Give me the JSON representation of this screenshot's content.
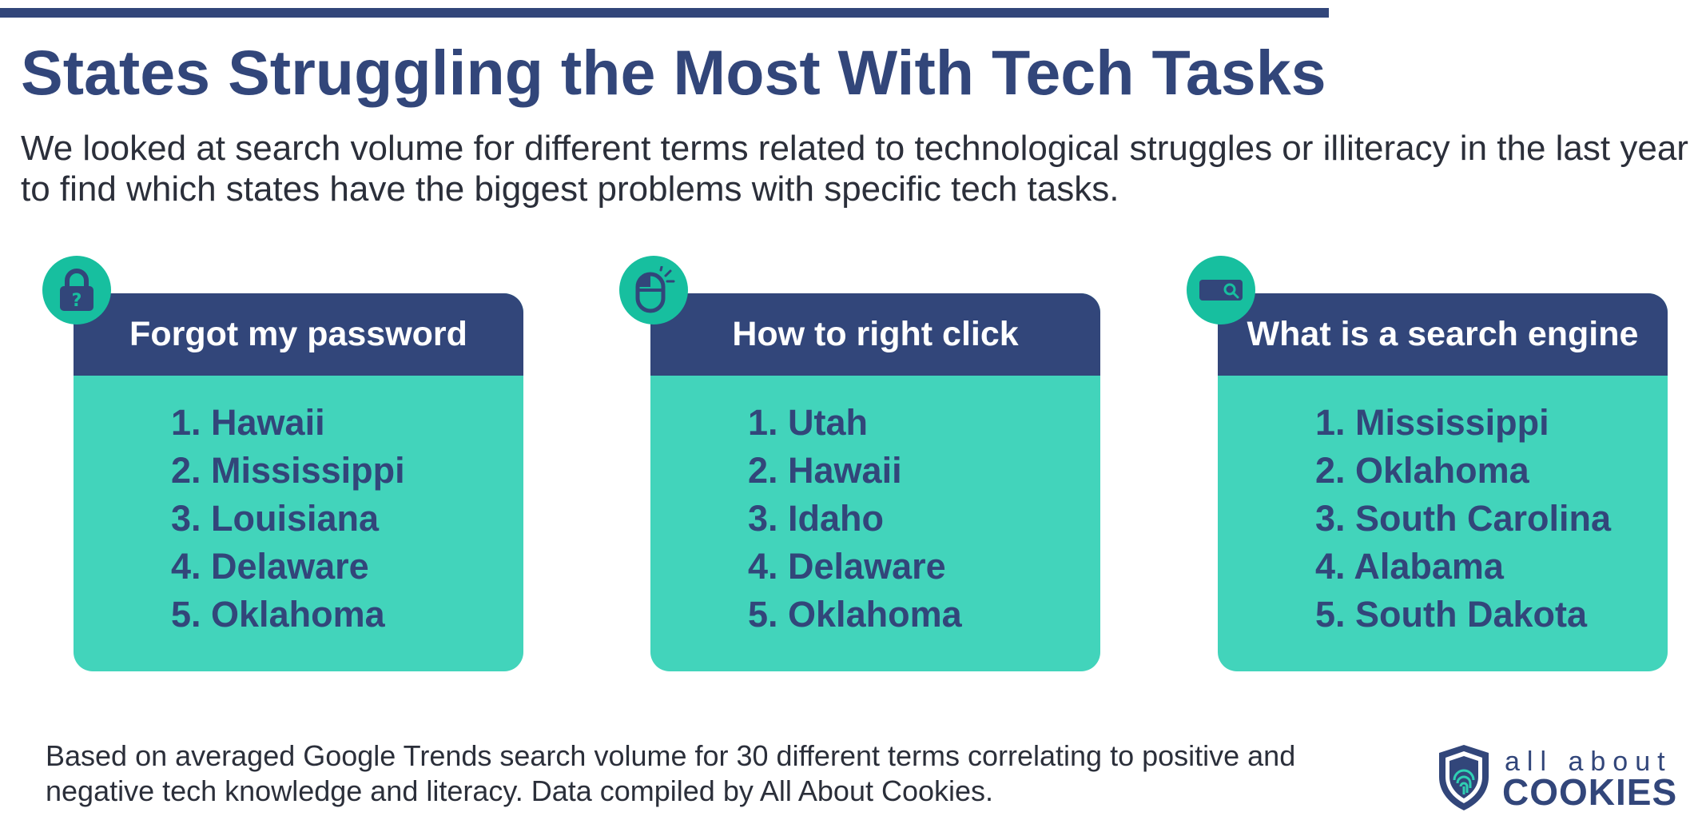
{
  "header": {
    "title": "States Struggling the Most With Tech Tasks",
    "subtitle": "We looked at search volume for different terms related to technological struggles or illiteracy in the last year to find which states have the biggest problems with specific tech tasks."
  },
  "cards": [
    {
      "icon": "lock-question-icon",
      "title": "Forgot my password",
      "items": [
        "1. Hawaii",
        "2. Mississippi",
        "3. Louisiana",
        "4. Delaware",
        "5. Oklahoma"
      ]
    },
    {
      "icon": "mouse-click-icon",
      "title": "How to right click",
      "items": [
        "1. Utah",
        "2. Hawaii",
        "3. Idaho",
        "4. Delaware",
        "5. Oklahoma"
      ]
    },
    {
      "icon": "search-bar-icon",
      "title": "What is a search engine",
      "items": [
        "1. Mississippi",
        "2. Oklahoma",
        "3. South Carolina",
        "4. Alabama",
        "5. South Dakota"
      ]
    }
  ],
  "footer": {
    "note": "Based on averaged Google Trends search volume for 30 different terms correlating to positive and negative tech knowledge and literacy. Data compiled by All About Cookies.",
    "logo_top": "all about",
    "logo_bottom": "COOKIES"
  },
  "colors": {
    "navy": "#32467a",
    "teal": "#42d4bb",
    "badge_teal": "#17bf9f",
    "text": "#2b2f3a"
  }
}
